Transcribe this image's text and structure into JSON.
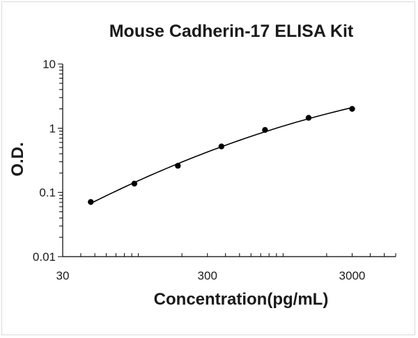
{
  "chart_data": {
    "type": "scatter",
    "title": "Mouse Cadherin-17 ELISA Kit",
    "xlabel": "Concentration(pg/mL)",
    "ylabel": "O.D.",
    "x_scale": "log",
    "y_scale": "log",
    "xlim": [
      30,
      6000
    ],
    "ylim": [
      0.01,
      10
    ],
    "x_ticks": [
      "30",
      "300",
      "3000"
    ],
    "y_ticks": [
      "10",
      "1",
      "0.1",
      "0.01"
    ],
    "grid": false,
    "series": [
      {
        "x": [
          46.9,
          93.8,
          187.5,
          375,
          750,
          1500,
          3000
        ],
        "y": [
          0.071,
          0.137,
          0.26,
          0.52,
          0.94,
          1.45,
          2.0
        ]
      }
    ],
    "trendline": true
  }
}
